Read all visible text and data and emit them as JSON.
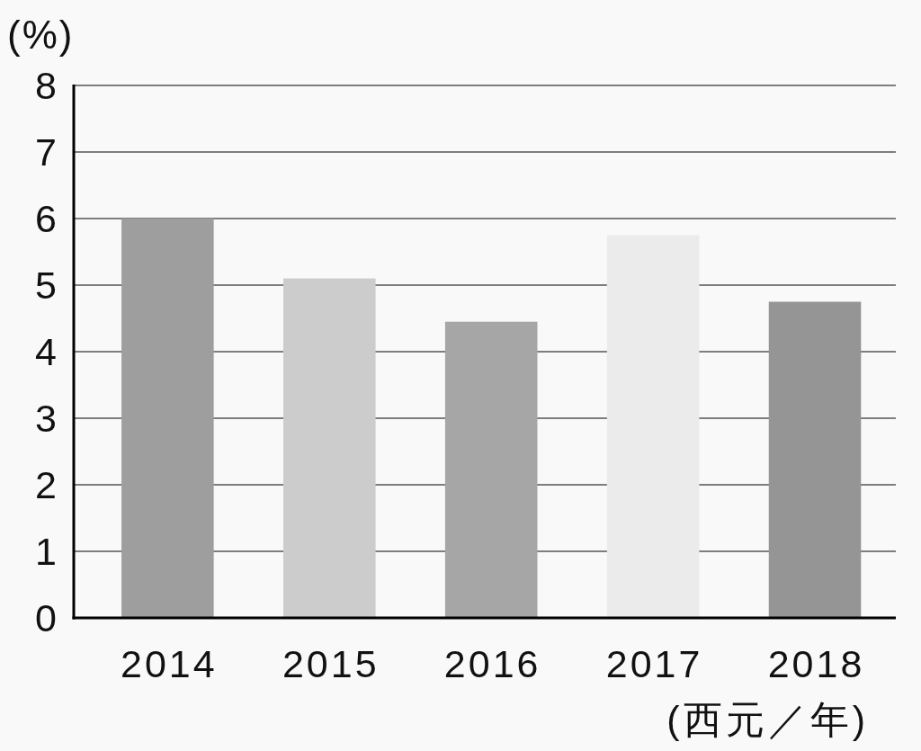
{
  "chart_data": {
    "type": "bar",
    "ylabel": "(%)",
    "xlabel": "(西元／年)",
    "categories": [
      "2014",
      "2015",
      "2016",
      "2017",
      "2018"
    ],
    "values": [
      6.0,
      5.1,
      4.45,
      5.75,
      4.75
    ],
    "colors": [
      "#9e9e9e",
      "#cccccc",
      "#a6a6a6",
      "#ebebeb",
      "#959595"
    ],
    "ylim": [
      0,
      8
    ],
    "yticks": [
      0,
      1,
      2,
      3,
      4,
      5,
      6,
      7,
      8
    ],
    "grid": "y"
  }
}
